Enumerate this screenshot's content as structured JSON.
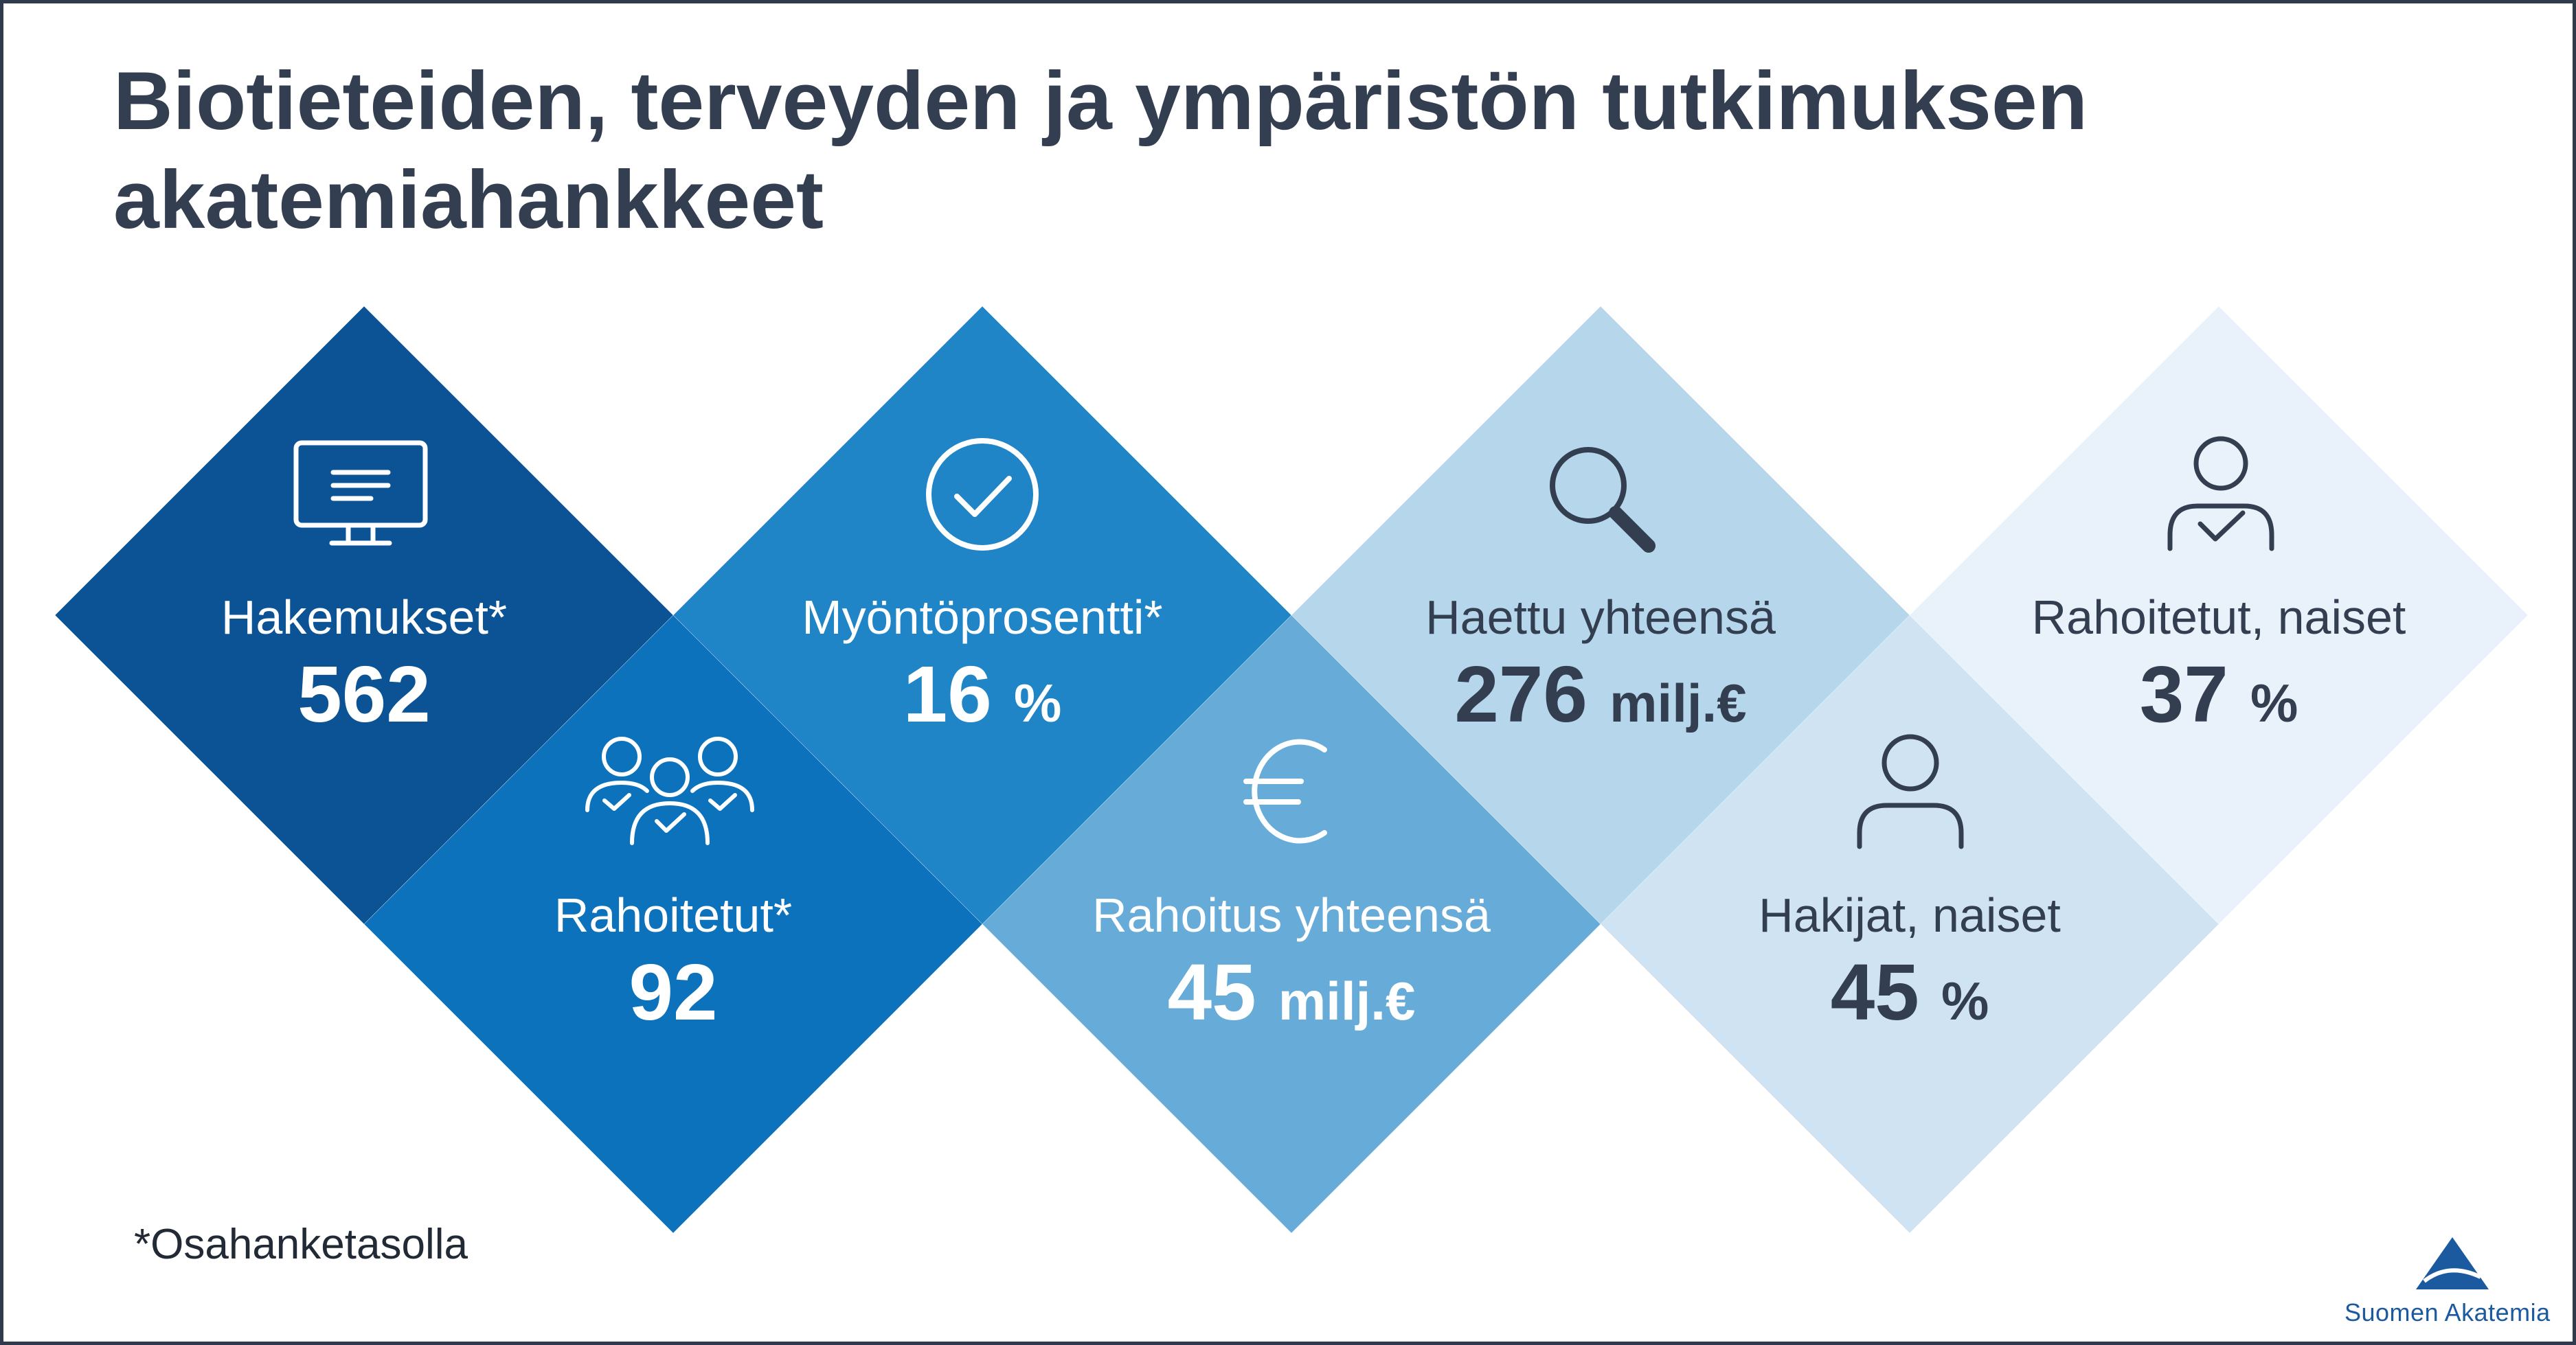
{
  "title": {
    "line1": "Biotieteiden, terveyden ja ympäristön tutkimuksen",
    "line2": "akatemiahankkeet"
  },
  "stats": {
    "hakemukset": {
      "label": "Hakemukset*",
      "value": "562",
      "unit": ""
    },
    "rahoitetut": {
      "label": "Rahoitetut*",
      "value": "92",
      "unit": ""
    },
    "myontoprosentti": {
      "label": "Myöntöprosentti*",
      "value": "16",
      "unit": "%"
    },
    "rahoitus_yhteensa": {
      "label": "Rahoitus yhteensä",
      "value": "45",
      "unit": "milj.€"
    },
    "haettu_yhteensa": {
      "label": "Haettu yhteensä",
      "value": "276",
      "unit": "milj.€"
    },
    "hakijat_naiset": {
      "label": "Hakijat, naiset",
      "value": "45",
      "unit": "%"
    },
    "rahoitetut_naiset": {
      "label": "Rahoitetut, naiset",
      "value": "37",
      "unit": "%"
    }
  },
  "icons": {
    "hakemukset": "monitor-icon",
    "rahoitetut": "group-check-icon",
    "myontoprosentti": "check-circle-icon",
    "rahoitus_yhteensa": "euro-icon",
    "haettu_yhteensa": "search-icon",
    "hakijat_naiset": "person-icon",
    "rahoitetut_naiset": "person-check-icon"
  },
  "colors": {
    "diamond_1": "#0b5394",
    "diamond_2": "#0c72bc",
    "diamond_3": "#1f85c7",
    "diamond_4": "#67acd8",
    "diamond_5": "#b6d6ec",
    "diamond_6": "#cfe3f2",
    "diamond_7": "#e9f2fb",
    "title": "#333e50",
    "logo": "#1c5aa0"
  },
  "footnote": "*Osahanketasolla",
  "logo": {
    "text": "Suomen Akatemia"
  }
}
